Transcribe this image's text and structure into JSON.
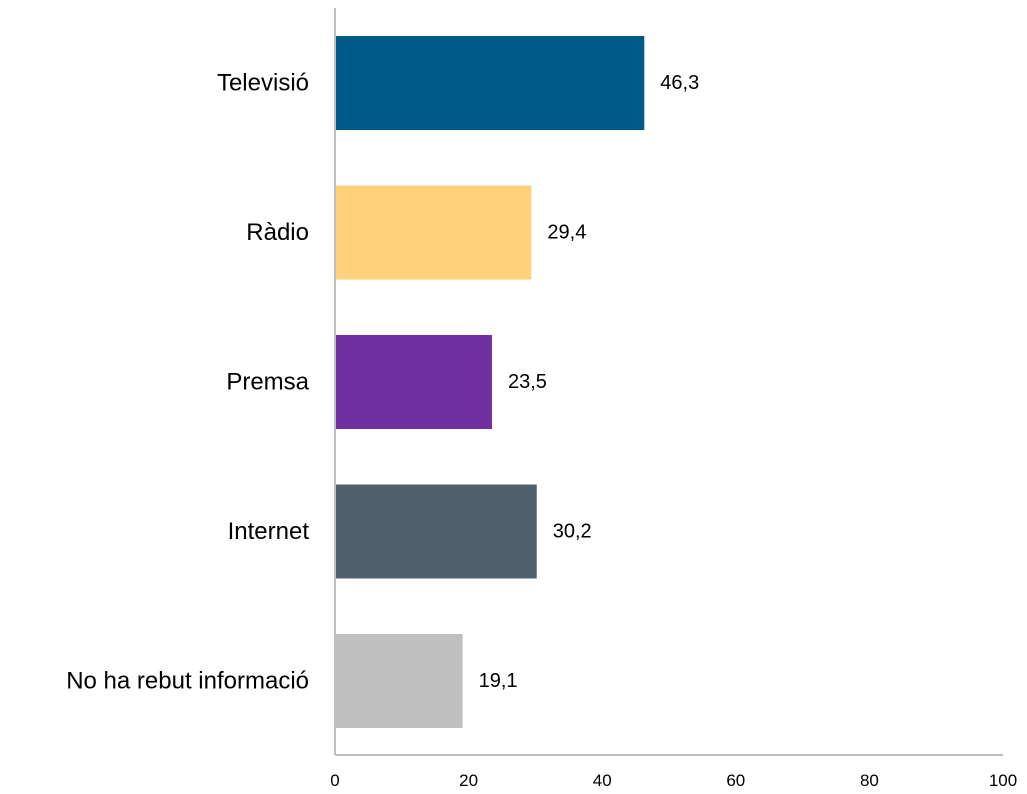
{
  "chart_data": {
    "type": "bar",
    "orientation": "horizontal",
    "categories": [
      "Televisió",
      "Ràdio",
      "Premsa",
      "Internet",
      "No ha rebut informació"
    ],
    "values": [
      46.3,
      29.4,
      23.5,
      30.2,
      19.1
    ],
    "value_labels": [
      "46,3",
      "29,4",
      "23,5",
      "30,2",
      "19,1"
    ],
    "colors": [
      "#005a87",
      "#fdd27a",
      "#7030a0",
      "#52606d",
      "#bfbfbf"
    ],
    "xlim": [
      0,
      100
    ],
    "xticks": [
      0,
      20,
      40,
      60,
      80,
      100
    ],
    "xtick_labels": [
      "0",
      "20",
      "40",
      "60",
      "80",
      "100"
    ],
    "grid": false,
    "legend": "none",
    "title": "",
    "xlabel": "",
    "ylabel": ""
  }
}
